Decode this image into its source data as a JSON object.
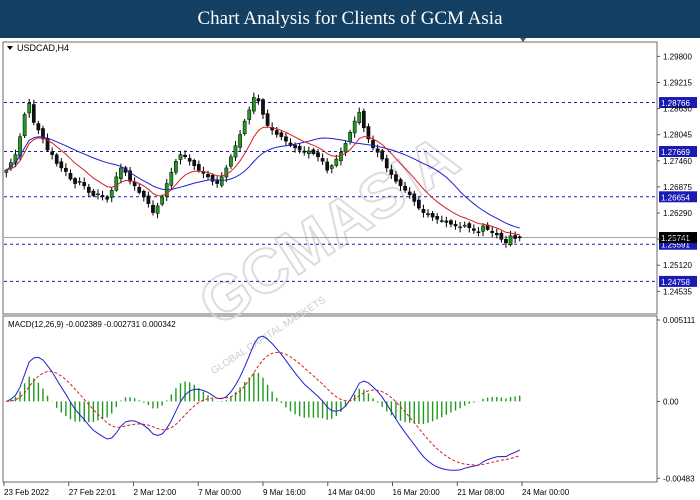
{
  "banner": {
    "title": "Chart Analysis for Clients of GCM Asia"
  },
  "watermark": {
    "text": "GCMASIA",
    "subtext": "GLOBAL CAPITAL MARKETS"
  },
  "chart_data": [
    {
      "type": "candlestick",
      "title": "USDCAD,H4",
      "ylim": [
        1.2405,
        1.301
      ],
      "y_ticks": [
        1.298,
        1.29215,
        1.2863,
        1.28045,
        1.2746,
        1.26875,
        1.2629,
        1.25705,
        1.2512,
        1.24535
      ],
      "x_ticks": [
        "23 Feb 2022",
        "27 Feb 22:01",
        "2 Mar 12:00",
        "7 Mar 00:00",
        "9 Mar 16:00",
        "14 Mar 04:00",
        "16 Mar 20:00",
        "21 Mar 08:00",
        "24 Mar 00:00"
      ],
      "horizontal_levels": [
        {
          "value": 1.28766,
          "label": "1.28766",
          "color": "#1a1ab4"
        },
        {
          "value": 1.27669,
          "label": "1.27669",
          "color": "#1a1ab4"
        },
        {
          "value": 1.26654,
          "label": "1.26654",
          "color": "#1a1ab4"
        },
        {
          "value": 1.25591,
          "label": "1.25591",
          "color": "#1a1ab4"
        },
        {
          "value": 1.24758,
          "label": "1.24758",
          "color": "#1a1ab4"
        }
      ],
      "current_price": {
        "value": 1.25741,
        "label": "1.25741"
      },
      "close": [
        1.2725,
        1.2742,
        1.276,
        1.28,
        1.285,
        1.2875,
        1.2832,
        1.2815,
        1.2795,
        1.277,
        1.276,
        1.274,
        1.273,
        1.2722,
        1.2705,
        1.2695,
        1.27,
        1.269,
        1.2675,
        1.2668,
        1.2672,
        1.2665,
        1.266,
        1.268,
        1.271,
        1.273,
        1.272,
        1.27,
        1.269,
        1.2675,
        1.2665,
        1.265,
        1.263,
        1.2645,
        1.2665,
        1.2695,
        1.272,
        1.2745,
        1.276,
        1.2755,
        1.2745,
        1.2735,
        1.2725,
        1.2718,
        1.271,
        1.27,
        1.2695,
        1.271,
        1.273,
        1.2755,
        1.278,
        1.2805,
        1.2835,
        1.286,
        1.2888,
        1.288,
        1.285,
        1.2825,
        1.2815,
        1.2805,
        1.28,
        1.279,
        1.278,
        1.2775,
        1.277,
        1.2765,
        1.2768,
        1.2762,
        1.2755,
        1.2745,
        1.2725,
        1.2735,
        1.275,
        1.2765,
        1.2785,
        1.281,
        1.2835,
        1.2855,
        1.282,
        1.2795,
        1.2775,
        1.2765,
        1.275,
        1.273,
        1.2715,
        1.27,
        1.269,
        1.268,
        1.267,
        1.2655,
        1.264,
        1.263,
        1.2625,
        1.262,
        1.2615,
        1.2612,
        1.2608,
        1.2604,
        1.26,
        1.2598,
        1.2602,
        1.2596,
        1.259,
        1.2585,
        1.26,
        1.2592,
        1.2585,
        1.258,
        1.257,
        1.2562,
        1.2578,
        1.2572,
        1.2574
      ],
      "ma_fast": {
        "color": "#d42020"
      },
      "ma_slow": {
        "color": "#2020d0"
      }
    },
    {
      "type": "macd",
      "label": "MACD(12,26,9) -0.002389 -0.002731 0.000342",
      "ylim": [
        -0.005,
        0.0053
      ],
      "y_ticks": [
        {
          "value": 0.005111,
          "label": "0.005111"
        },
        {
          "value": 0.0,
          "label": "0.00"
        },
        {
          "value": -0.00483,
          "label": "-0.00483"
        }
      ],
      "macd_line": {
        "color": "#2020d0"
      },
      "signal_line": {
        "color": "#d42020"
      },
      "histogram": {
        "color": "#1f9a1f"
      }
    }
  ]
}
